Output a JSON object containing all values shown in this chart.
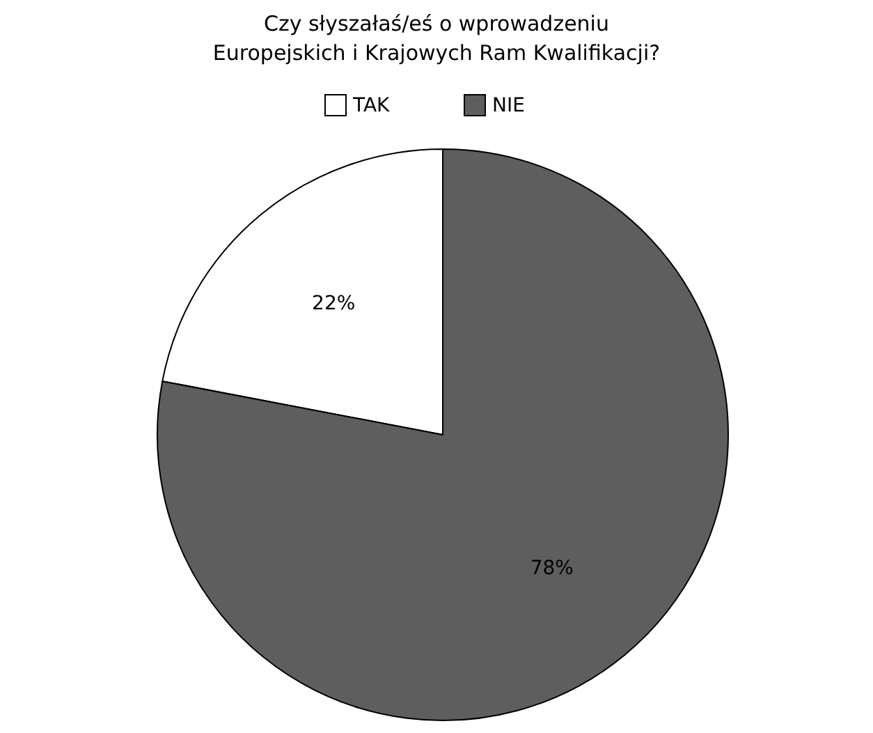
{
  "chart_data": {
    "type": "pie",
    "title": "Czy słyszałaś/eś o wprowadzeniu Europejskich i Krajowych Ram Kwalifikacji?",
    "categories": [
      "TAK",
      "NIE"
    ],
    "values": [
      22,
      78
    ],
    "colors": [
      "#ffffff",
      "#5e5e5e"
    ],
    "value_labels": [
      "22%",
      "78%"
    ],
    "legend": "top"
  }
}
